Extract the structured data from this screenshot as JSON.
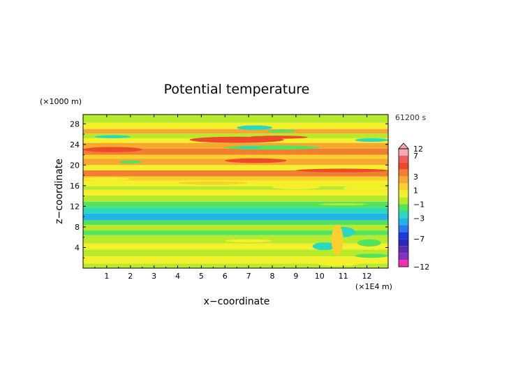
{
  "chart_data": {
    "type": "heatmap",
    "title": "Potential temperature",
    "xlabel": "x−coordinate",
    "ylabel": "z−coordinate",
    "x_unit": "(×1E4 m)",
    "y_unit": "(×1000 m)",
    "time_label": "61200 s",
    "xlim": [
      0,
      12.9
    ],
    "ylim": [
      0,
      29.8
    ],
    "x_ticks": [
      "1",
      "2",
      "3",
      "4",
      "5",
      "6",
      "7",
      "8",
      "9",
      "10",
      "11",
      "12"
    ],
    "y_ticks": [
      "4",
      "8",
      "12",
      "16",
      "20",
      "24",
      "28"
    ],
    "colorbar": {
      "min": -12,
      "max": 12,
      "tick_labels": [
        "12",
        "7",
        "3",
        "1",
        "−1",
        "−3",
        "−7",
        "−12"
      ],
      "levels": [
        {
          "from": 7,
          "to": 12,
          "color": "#f4a9b4"
        },
        {
          "from": 5,
          "to": 7,
          "color": "#ef5c5c"
        },
        {
          "from": 4,
          "to": 5,
          "color": "#ee4a2a"
        },
        {
          "from": 3,
          "to": 4,
          "color": "#f08030"
        },
        {
          "from": 2,
          "to": 3,
          "color": "#f7a830"
        },
        {
          "from": 1,
          "to": 2,
          "color": "#fbd02c"
        },
        {
          "from": 0,
          "to": 1,
          "color": "#f4f02c"
        },
        {
          "from": -1,
          "to": 0,
          "color": "#b7ea2c"
        },
        {
          "from": -2,
          "to": -1,
          "color": "#53e35e"
        },
        {
          "from": -3,
          "to": -2,
          "color": "#2ad8c0"
        },
        {
          "from": -4,
          "to": -3,
          "color": "#22b4e6"
        },
        {
          "from": -5,
          "to": -4,
          "color": "#2a78ea"
        },
        {
          "from": -7,
          "to": -5,
          "color": "#1a3ae0"
        },
        {
          "from": -9,
          "to": -7,
          "color": "#2a28b8"
        },
        {
          "from": -10,
          "to": -9,
          "color": "#5a2ab8"
        },
        {
          "from": -11,
          "to": -10,
          "color": "#8a30b8"
        },
        {
          "from": -12,
          "to": -11,
          "color": "#f030b0"
        }
      ]
    },
    "layers": [
      {
        "z0": 0.0,
        "z1": 0.9,
        "value": -0.5
      },
      {
        "z0": 0.9,
        "z1": 2.3,
        "value": 0.5
      },
      {
        "z0": 2.3,
        "z1": 3.6,
        "value": -0.5
      },
      {
        "z0": 3.6,
        "z1": 4.8,
        "value": 0.5
      },
      {
        "z0": 4.8,
        "z1": 6.4,
        "value": -0.5
      },
      {
        "z0": 6.4,
        "z1": 7.3,
        "value": -1.5
      },
      {
        "z0": 7.3,
        "z1": 8.4,
        "value": -0.5
      },
      {
        "z0": 8.4,
        "z1": 9.3,
        "value": -1.5
      },
      {
        "z0": 9.3,
        "z1": 10.6,
        "value": -3.5
      },
      {
        "z0": 10.6,
        "z1": 11.7,
        "value": -2.5
      },
      {
        "z0": 11.7,
        "z1": 12.9,
        "value": -1.5
      },
      {
        "z0": 12.9,
        "z1": 14.1,
        "value": -0.5
      },
      {
        "z0": 14.1,
        "z1": 15.2,
        "value": 0.5
      },
      {
        "z0": 15.2,
        "z1": 15.9,
        "value": -0.5
      },
      {
        "z0": 15.9,
        "z1": 17.0,
        "value": 0.5
      },
      {
        "z0": 17.0,
        "z1": 17.8,
        "value": 1.5
      },
      {
        "z0": 17.8,
        "z1": 19.0,
        "value": 3.5
      },
      {
        "z0": 19.0,
        "z1": 20.0,
        "value": 0.5
      },
      {
        "z0": 20.0,
        "z1": 21.2,
        "value": 2.5
      },
      {
        "z0": 21.2,
        "z1": 22.0,
        "value": 1.5
      },
      {
        "z0": 22.0,
        "z1": 23.2,
        "value": 3.5
      },
      {
        "z0": 23.2,
        "z1": 24.3,
        "value": 2.5
      },
      {
        "z0": 24.3,
        "z1": 25.2,
        "value": 0.5
      },
      {
        "z0": 25.2,
        "z1": 26.1,
        "value": -0.5
      },
      {
        "z0": 26.1,
        "z1": 27.0,
        "value": 2.5
      },
      {
        "z0": 27.0,
        "z1": 28.2,
        "value": 0.5
      },
      {
        "z0": 28.2,
        "z1": 29.8,
        "value": -0.5
      }
    ],
    "features": [
      {
        "x0": 4.5,
        "x1": 8.5,
        "z0": 24.3,
        "z1": 25.5,
        "value": 4.5
      },
      {
        "x0": 7.0,
        "x1": 9.5,
        "z0": 25.1,
        "z1": 25.7,
        "value": 4.5
      },
      {
        "x0": 0.0,
        "x1": 2.5,
        "z0": 22.5,
        "z1": 23.5,
        "value": 4.5
      },
      {
        "x0": 6.0,
        "x1": 8.6,
        "z0": 20.4,
        "z1": 21.3,
        "value": 4.5
      },
      {
        "x0": 6.0,
        "x1": 10.0,
        "z0": 23.0,
        "z1": 23.8,
        "value": -1.5
      },
      {
        "x0": 6.5,
        "x1": 7.5,
        "z0": 23.2,
        "z1": 23.6,
        "value": -2.5
      },
      {
        "x0": 6.5,
        "x1": 8.0,
        "z0": 26.8,
        "z1": 27.7,
        "value": -2.5
      },
      {
        "x0": 7.8,
        "x1": 9.0,
        "z0": 26.3,
        "z1": 26.9,
        "value": -1.5
      },
      {
        "x0": 0.5,
        "x1": 2.0,
        "z0": 25.2,
        "z1": 25.8,
        "value": -2.5
      },
      {
        "x0": 1.5,
        "x1": 2.5,
        "z0": 20.3,
        "z1": 20.9,
        "value": -1.5
      },
      {
        "x0": 11.5,
        "x1": 12.9,
        "z0": 24.5,
        "z1": 25.2,
        "value": -2.5
      },
      {
        "x0": 9.0,
        "x1": 12.9,
        "z0": 18.6,
        "z1": 19.3,
        "value": 4.5
      },
      {
        "x0": 11.0,
        "x1": 12.9,
        "z0": 15.0,
        "z1": 16.0,
        "value": 0.5
      },
      {
        "x0": 8.0,
        "x1": 10.0,
        "z0": 15.3,
        "z1": 16.1,
        "value": 0.5
      },
      {
        "x0": 10.0,
        "x1": 12.0,
        "z0": 12.2,
        "z1": 12.6,
        "value": -0.5
      },
      {
        "x0": 10.5,
        "x1": 11.5,
        "z0": 6.0,
        "z1": 8.0,
        "value": -2.5
      },
      {
        "x0": 9.7,
        "x1": 10.7,
        "z0": 3.5,
        "z1": 5.0,
        "value": -2.5
      },
      {
        "x0": 10.5,
        "x1": 11.0,
        "z0": 2.5,
        "z1": 8.5,
        "value": 1.5
      },
      {
        "x0": 9.8,
        "x1": 11.8,
        "z0": 0.4,
        "z1": 2.0,
        "value": 0.5
      },
      {
        "x0": 11.6,
        "x1": 12.6,
        "z0": 4.2,
        "z1": 5.6,
        "value": -1.5
      },
      {
        "x0": 11.5,
        "x1": 12.9,
        "z0": 2.0,
        "z1": 2.8,
        "value": -1.5
      },
      {
        "x0": 6.0,
        "x1": 8.0,
        "z0": 5.0,
        "z1": 5.6,
        "value": 0.5
      },
      {
        "x0": 0.0,
        "x1": 2.0,
        "z0": 17.0,
        "z1": 17.6,
        "value": 0.5
      },
      {
        "x0": 4.0,
        "x1": 7.0,
        "z0": 16.2,
        "z1": 16.8,
        "value": 1.5
      }
    ]
  }
}
